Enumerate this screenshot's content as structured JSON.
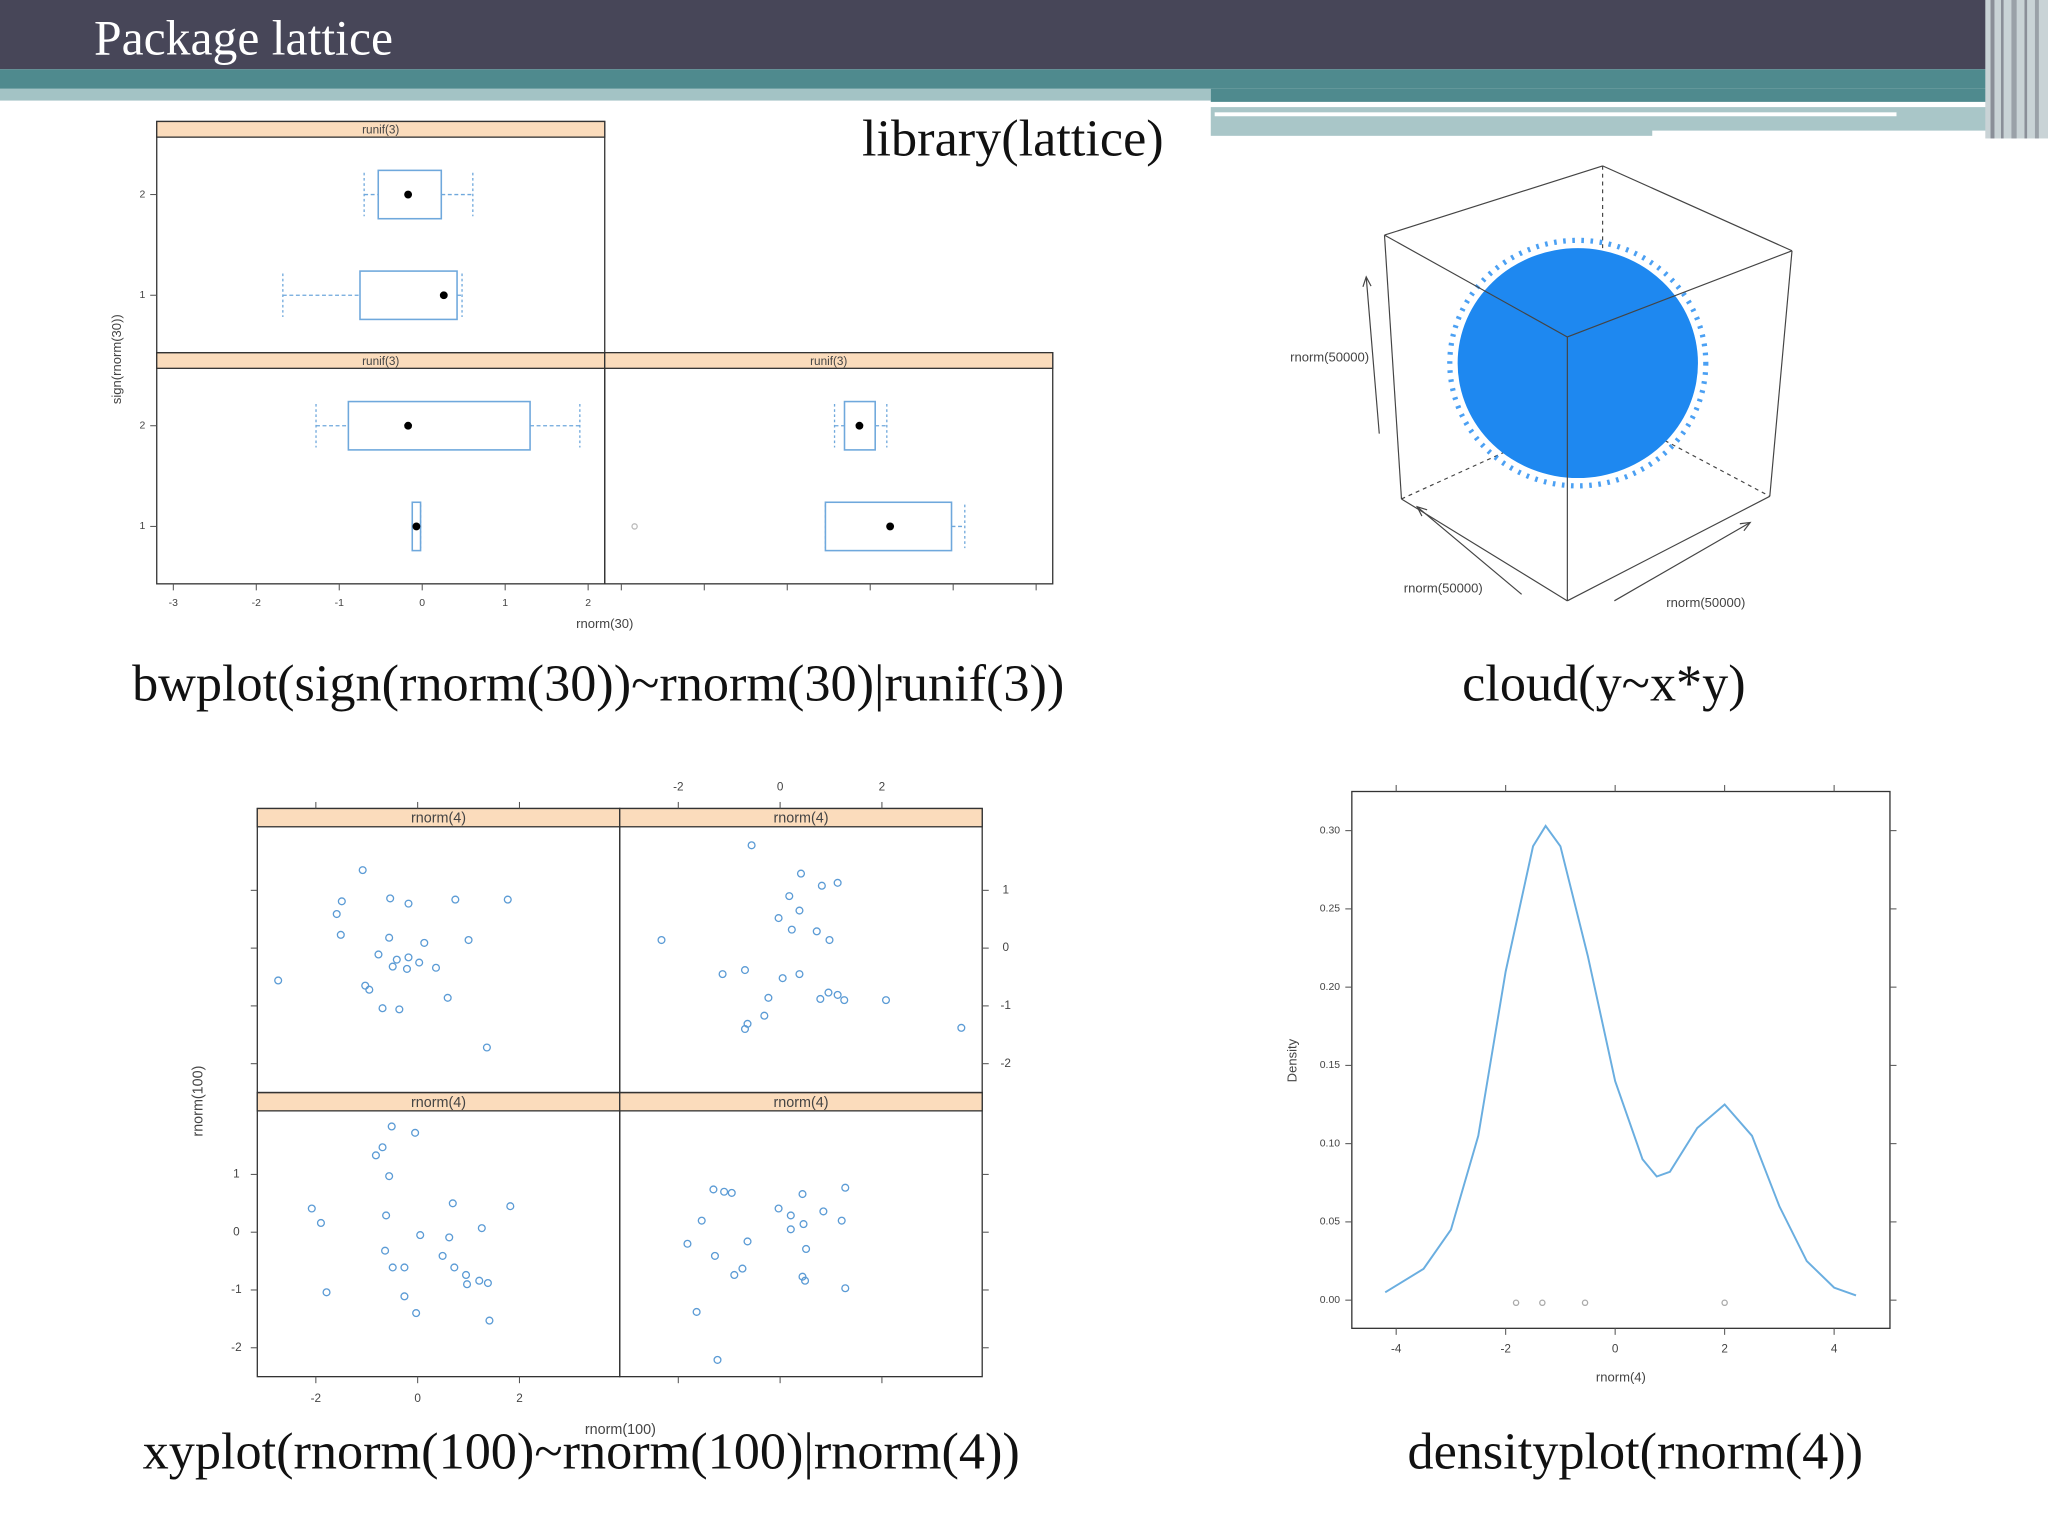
{
  "header": {
    "title": "Package lattice"
  },
  "code": "library(lattice)",
  "chart_data": [
    {
      "type": "boxplot",
      "caption": "bwplot(sign(rnorm(30))~rnorm(30)|runif(3))",
      "xlabel": "rnorm(30)",
      "ylabel": "sign(rnorm(30))",
      "xlim": [
        -3.2,
        2.2
      ],
      "xticks": [
        -3,
        -2,
        -1,
        0,
        1,
        2
      ],
      "categories": [
        "1",
        "2"
      ],
      "color": "#6fa8dc",
      "strip_color": "#fbdcbc",
      "panels": [
        {
          "strip": "runif(3)",
          "boxes": [
            {
              "min": -0.12,
              "q1": -0.12,
              "median": -0.07,
              "q3": -0.02,
              "max": -0.02,
              "outliers": []
            },
            {
              "min": -1.28,
              "q1": -0.89,
              "median": -0.17,
              "q3": 1.3,
              "max": 1.9,
              "outliers": []
            }
          ]
        },
        {
          "strip": "runif(3)",
          "boxes": [
            {
              "min": -0.54,
              "q1": -0.54,
              "median": 0.24,
              "q3": 0.98,
              "max": 1.14,
              "outliers": [
                -2.84
              ]
            },
            {
              "min": -0.43,
              "q1": -0.31,
              "median": -0.13,
              "q3": 0.06,
              "max": 0.2,
              "outliers": []
            }
          ]
        },
        {
          "strip": "runif(3)",
          "boxes": [
            {
              "min": -1.68,
              "q1": -0.75,
              "median": 0.26,
              "q3": 0.42,
              "max": 0.48,
              "outliers": []
            },
            {
              "min": -0.7,
              "q1": -0.53,
              "median": -0.17,
              "q3": 0.23,
              "max": 0.61,
              "outliers": []
            }
          ]
        }
      ]
    },
    {
      "type": "cloud",
      "caption": "cloud(y~x*y)",
      "xlabel": "rnorm(50000)",
      "ylabel": "rnorm(50000)",
      "zlabel": "rnorm(50000)",
      "color": "#1e88f0"
    },
    {
      "type": "scatter",
      "caption": "xyplot(rnorm(100)~rnorm(100)|rnorm(4))",
      "xlabel": "rnorm(100)",
      "ylabel": "rnorm(100)",
      "xlim": [
        -3.15,
        3.97
      ],
      "ylim": [
        -2.5,
        2.1
      ],
      "xticks": [
        -2,
        0,
        2
      ],
      "yticks": [
        -2,
        -1,
        0,
        1
      ],
      "color": "#5b9bd5",
      "strip_color": "#fbdcbc",
      "panels": [
        {
          "strip": "rnorm(4)",
          "x": [
            -0.51,
            -0.05,
            -0.69,
            -0.82,
            -0.56,
            0.69,
            1.82,
            -2.08,
            -1.9,
            1.26,
            -0.62,
            0.05,
            0.62,
            -0.64,
            0.49,
            -0.49,
            -0.26,
            0.72,
            0.95,
            1.21,
            1.38,
            0.97,
            -1.79,
            -0.26,
            -0.03,
            1.41
          ],
          "y": [
            1.83,
            1.72,
            1.47,
            1.33,
            0.97,
            0.5,
            0.45,
            0.41,
            0.16,
            0.07,
            0.29,
            -0.05,
            -0.09,
            -0.32,
            -0.41,
            -0.61,
            -0.61,
            -0.61,
            -0.74,
            -0.84,
            -0.88,
            -0.9,
            -1.04,
            -1.11,
            -1.4,
            -1.53
          ]
        },
        {
          "strip": "rnorm(4)",
          "x": [
            -1.31,
            -1.1,
            -0.95,
            0.44,
            1.28,
            -1.54,
            -0.03,
            0.21,
            0.85,
            1.21,
            0.21,
            0.46,
            -1.82,
            -0.64,
            -1.28,
            0.51,
            -0.74,
            -0.9,
            0.44,
            0.49,
            1.28,
            -1.64,
            -1.23
          ],
          "y": [
            0.74,
            0.7,
            0.68,
            0.66,
            0.77,
            0.2,
            0.41,
            0.29,
            0.36,
            0.2,
            0.05,
            0.14,
            -0.2,
            -0.16,
            -0.41,
            -0.29,
            -0.63,
            -0.74,
            -0.77,
            -0.84,
            -0.97,
            -1.38,
            -2.21
          ]
        },
        {
          "strip": "rnorm(4)",
          "x": [
            -1.08,
            -1.49,
            -1.59,
            -0.54,
            -0.18,
            0.74,
            1.77,
            -1.51,
            -0.56,
            0.13,
            1.0,
            -0.77,
            -0.41,
            -0.18,
            0.03,
            -0.21,
            0.36,
            -0.49,
            -1.03,
            -0.95,
            0.59,
            -0.69,
            -0.36,
            -2.74,
            1.36
          ],
          "y": [
            1.35,
            0.81,
            0.59,
            0.86,
            0.77,
            0.84,
            0.84,
            0.23,
            0.18,
            0.09,
            0.14,
            -0.11,
            -0.2,
            -0.16,
            -0.25,
            -0.36,
            -0.34,
            -0.32,
            -0.65,
            -0.72,
            -0.86,
            -1.04,
            -1.06,
            -0.56,
            -1.72
          ]
        },
        {
          "strip": "rnorm(4)",
          "x": [
            -0.56,
            0.41,
            0.82,
            1.13,
            0.18,
            0.38,
            -0.03,
            0.23,
            0.72,
            0.97,
            -2.33,
            -0.69,
            -1.13,
            0.05,
            0.38,
            0.95,
            0.79,
            1.13,
            1.26,
            2.08,
            -0.23,
            -0.31,
            -0.64,
            -0.69,
            3.56
          ],
          "y": [
            1.78,
            1.29,
            1.08,
            1.13,
            0.9,
            0.65,
            0.52,
            0.32,
            0.29,
            0.14,
            0.14,
            -0.38,
            -0.45,
            -0.52,
            -0.45,
            -0.77,
            -0.88,
            -0.81,
            -0.9,
            -0.9,
            -0.86,
            -1.17,
            -1.31,
            -1.4,
            -1.38
          ]
        }
      ]
    },
    {
      "type": "density",
      "caption": "densityplot(rnorm(4))",
      "xlabel": "rnorm(4)",
      "ylabel": "Density",
      "xlim": [
        -4.81,
        5.02
      ],
      "ylim": [
        -0.018,
        0.325
      ],
      "xticks": [
        -4,
        -2,
        0,
        2,
        4
      ],
      "yticks": [
        {
          "value": 0,
          "label": "0.00"
        },
        {
          "value": 0.05,
          "label": "0.05"
        },
        {
          "value": 0.1,
          "label": "0.10"
        },
        {
          "value": 0.15,
          "label": "0.15"
        },
        {
          "value": 0.2,
          "label": "0.20"
        },
        {
          "value": 0.25,
          "label": "0.25"
        },
        {
          "value": 0.3,
          "label": "0.30"
        }
      ],
      "x": [
        -4.2,
        -3.5,
        -3,
        -2.5,
        -2,
        -1.5,
        -1.27,
        -1,
        -0.5,
        0,
        0.5,
        0.76,
        1,
        1.5,
        2,
        2.5,
        3,
        3.5,
        4,
        4.4
      ],
      "values": [
        0.005,
        0.02,
        0.045,
        0.105,
        0.21,
        0.29,
        0.303,
        0.29,
        0.22,
        0.14,
        0.09,
        0.079,
        0.082,
        0.11,
        0.125,
        0.105,
        0.06,
        0.025,
        0.008,
        0.003
      ],
      "rug": [
        -1.81,
        -1.33,
        -0.55,
        2.0
      ],
      "color": "#6aaee0"
    }
  ]
}
